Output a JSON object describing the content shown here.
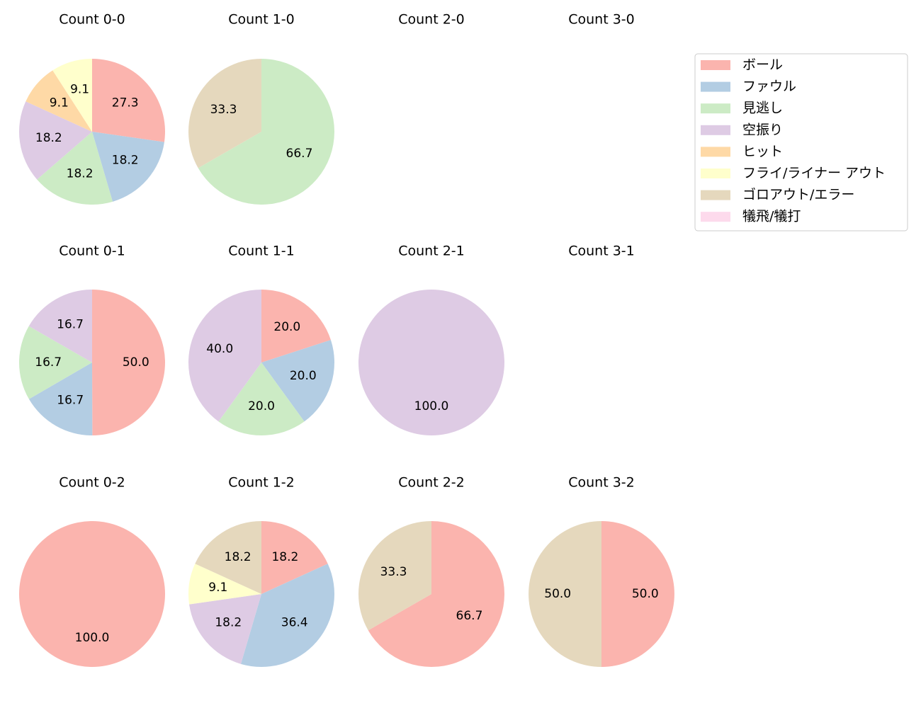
{
  "chart_data": [
    {
      "type": "pie",
      "title": "Count 0-0",
      "values": [
        27.3,
        18.2,
        18.2,
        18.2,
        9.1,
        9.1,
        null,
        null
      ],
      "value_labels": [
        "27.3",
        "18.2",
        "18.2",
        "18.2",
        "9.1",
        "9.1",
        null,
        null
      ]
    },
    {
      "type": "pie",
      "title": "Count 1-0",
      "values": [
        null,
        null,
        66.7,
        null,
        null,
        null,
        33.3,
        null
      ],
      "value_labels": [
        null,
        null,
        "66.7",
        null,
        null,
        null,
        "33.3",
        null
      ]
    },
    {
      "type": "pie",
      "title": "Count 2-0",
      "values": [
        null,
        null,
        null,
        null,
        null,
        null,
        null,
        null
      ]
    },
    {
      "type": "pie",
      "title": "Count 3-0",
      "values": [
        null,
        null,
        null,
        null,
        null,
        null,
        null,
        null
      ]
    },
    {
      "type": "pie",
      "title": "Count 0-1",
      "values": [
        50,
        16.7,
        16.7,
        16.7,
        null,
        null,
        null,
        null
      ],
      "value_labels": [
        "50.0",
        "16.7",
        "16.7",
        "16.7",
        null,
        null,
        null,
        null
      ]
    },
    {
      "type": "pie",
      "title": "Count 1-1",
      "values": [
        20,
        20,
        20,
        40,
        null,
        null,
        null,
        null
      ],
      "value_labels": [
        "20.0",
        "20.0",
        "20.0",
        "40.0",
        null,
        null,
        null,
        null
      ]
    },
    {
      "type": "pie",
      "title": "Count 2-1",
      "values": [
        null,
        null,
        null,
        100,
        null,
        null,
        null,
        null
      ],
      "value_labels": [
        null,
        null,
        null,
        "100.0",
        null,
        null,
        null,
        null
      ]
    },
    {
      "type": "pie",
      "title": "Count 3-1",
      "values": [
        null,
        null,
        null,
        null,
        null,
        null,
        null,
        null
      ]
    },
    {
      "type": "pie",
      "title": "Count 0-2",
      "values": [
        100,
        null,
        null,
        null,
        null,
        null,
        null,
        null
      ],
      "value_labels": [
        "100.0",
        null,
        null,
        null,
        null,
        null,
        null,
        null
      ]
    },
    {
      "type": "pie",
      "title": "Count 1-2",
      "values": [
        18.2,
        36.4,
        null,
        18.2,
        null,
        9.1,
        18.2,
        null
      ],
      "value_labels": [
        "18.2",
        "36.4",
        null,
        "18.2",
        null,
        "9.1",
        "18.2",
        null
      ]
    },
    {
      "type": "pie",
      "title": "Count 2-2",
      "values": [
        66.7,
        null,
        null,
        null,
        null,
        null,
        33.3,
        null
      ],
      "value_labels": [
        "66.7",
        null,
        null,
        null,
        null,
        null,
        "33.3",
        null
      ]
    },
    {
      "type": "pie",
      "title": "Count 3-2",
      "values": [
        50,
        null,
        null,
        null,
        null,
        null,
        50,
        null
      ],
      "value_labels": [
        "50.0",
        null,
        null,
        null,
        null,
        null,
        "50.0",
        null
      ]
    }
  ],
  "legend": {
    "items": [
      {
        "name": "ボール",
        "color": "#fbb4ae"
      },
      {
        "name": "ファウル",
        "color": "#b3cde3"
      },
      {
        "name": "見逃し",
        "color": "#ccebc5"
      },
      {
        "name": "空振り",
        "color": "#decbe4"
      },
      {
        "name": "ヒット",
        "color": "#fed9a6"
      },
      {
        "name": "フライ/ライナー アウト",
        "color": "#ffffcc"
      },
      {
        "name": "ゴロアウト/エラー",
        "color": "#e5d8bd"
      },
      {
        "name": "犠飛/犠打",
        "color": "#fddaec"
      }
    ]
  }
}
